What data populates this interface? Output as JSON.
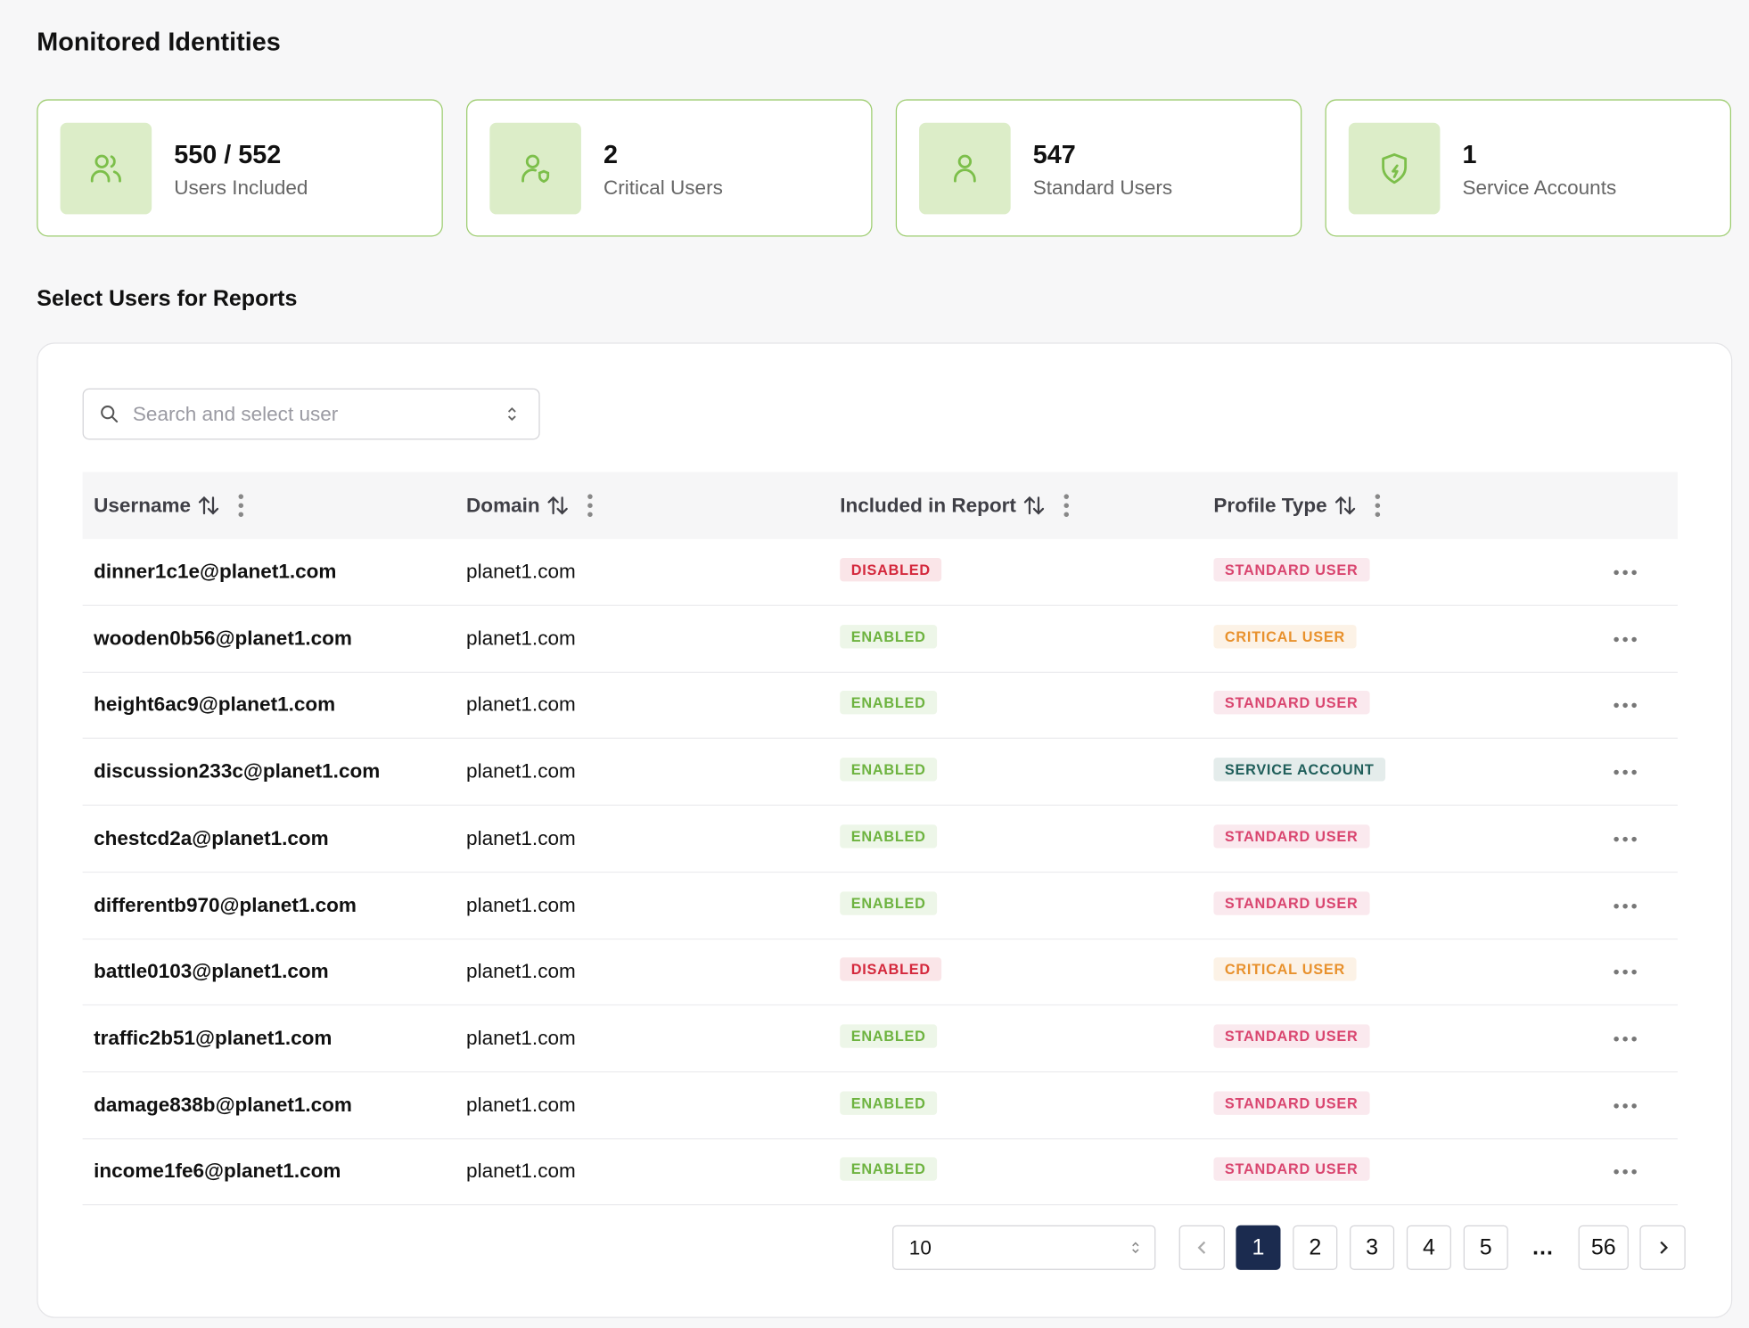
{
  "header": {
    "title": "Monitored Identities"
  },
  "stats": [
    {
      "value": "550 / 552",
      "label": "Users Included"
    },
    {
      "value": "2",
      "label": "Critical Users"
    },
    {
      "value": "547",
      "label": "Standard Users"
    },
    {
      "value": "1",
      "label": "Service Accounts"
    }
  ],
  "section": {
    "title": "Select Users for Reports"
  },
  "search": {
    "placeholder": "Search and select user"
  },
  "table": {
    "columns": [
      "Username",
      "Domain",
      "Included in Report",
      "Profile Type"
    ],
    "rows": [
      {
        "username": "dinner1c1e@planet1.com",
        "domain": "planet1.com",
        "included": {
          "label": "DISABLED",
          "color": "#d4283c"
        },
        "profile": {
          "label": "STANDARD USER",
          "color": "#d9456f"
        }
      },
      {
        "username": "wooden0b56@planet1.com",
        "domain": "planet1.com",
        "included": {
          "label": "ENABLED",
          "color": "#6db33f"
        },
        "profile": {
          "label": "CRITICAL USER",
          "color": "#e8912d"
        }
      },
      {
        "username": "height6ac9@planet1.com",
        "domain": "planet1.com",
        "included": {
          "label": "ENABLED",
          "color": "#6db33f"
        },
        "profile": {
          "label": "STANDARD USER",
          "color": "#d9456f"
        }
      },
      {
        "username": "discussion233c@planet1.com",
        "domain": "planet1.com",
        "included": {
          "label": "ENABLED",
          "color": "#6db33f"
        },
        "profile": {
          "label": "SERVICE ACCOUNT",
          "color": "#1f5e5a"
        }
      },
      {
        "username": "chestcd2a@planet1.com",
        "domain": "planet1.com",
        "included": {
          "label": "ENABLED",
          "color": "#6db33f"
        },
        "profile": {
          "label": "STANDARD USER",
          "color": "#d9456f"
        }
      },
      {
        "username": "differentb970@planet1.com",
        "domain": "planet1.com",
        "included": {
          "label": "ENABLED",
          "color": "#6db33f"
        },
        "profile": {
          "label": "STANDARD USER",
          "color": "#d9456f"
        }
      },
      {
        "username": "battle0103@planet1.com",
        "domain": "planet1.com",
        "included": {
          "label": "DISABLED",
          "color": "#d4283c"
        },
        "profile": {
          "label": "CRITICAL USER",
          "color": "#e8912d"
        }
      },
      {
        "username": "traffic2b51@planet1.com",
        "domain": "planet1.com",
        "included": {
          "label": "ENABLED",
          "color": "#6db33f"
        },
        "profile": {
          "label": "STANDARD USER",
          "color": "#d9456f"
        }
      },
      {
        "username": "damage838b@planet1.com",
        "domain": "planet1.com",
        "included": {
          "label": "ENABLED",
          "color": "#6db33f"
        },
        "profile": {
          "label": "STANDARD USER",
          "color": "#d9456f"
        }
      },
      {
        "username": "income1fe6@planet1.com",
        "domain": "planet1.com",
        "included": {
          "label": "ENABLED",
          "color": "#6db33f"
        },
        "profile": {
          "label": "STANDARD USER",
          "color": "#d9456f"
        }
      }
    ]
  },
  "pagination": {
    "page_size": "10",
    "pages": [
      "1",
      "2",
      "3",
      "4",
      "5",
      "…",
      "56"
    ]
  }
}
